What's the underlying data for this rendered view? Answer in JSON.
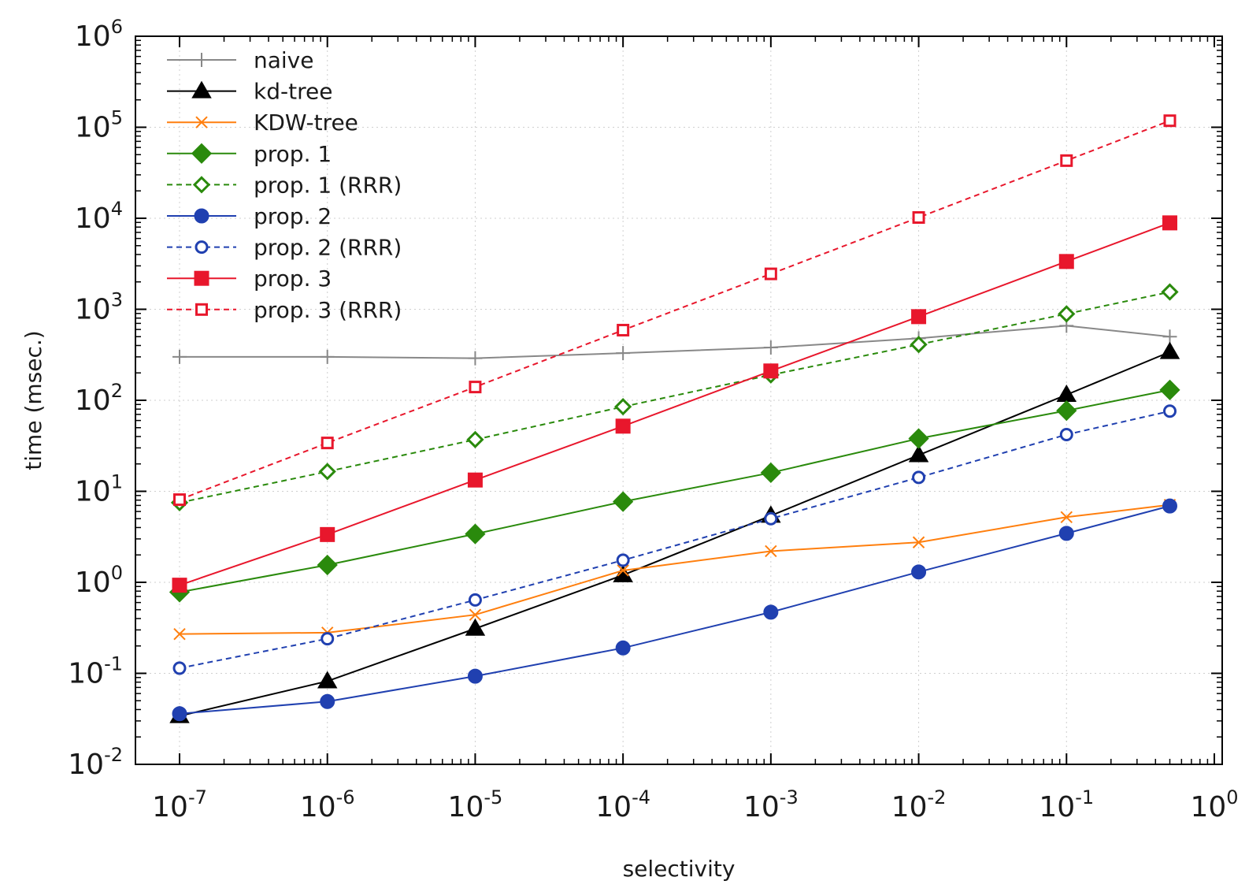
{
  "chart_data": {
    "type": "line",
    "title": "",
    "xlabel": "selectivity",
    "ylabel": "time (msec.)",
    "xscale": "log",
    "yscale": "log",
    "xlim": [
      1e-07,
      1
    ],
    "ylim": [
      0.01,
      1000000
    ],
    "grid": true,
    "legend_position": "top-left",
    "x_ticks": [
      {
        "base": "10",
        "exp": "-7"
      },
      {
        "base": "10",
        "exp": "-6"
      },
      {
        "base": "10",
        "exp": "-5"
      },
      {
        "base": "10",
        "exp": "-4"
      },
      {
        "base": "10",
        "exp": "-3"
      },
      {
        "base": "10",
        "exp": "-2"
      },
      {
        "base": "10",
        "exp": "-1"
      },
      {
        "base": "10",
        "exp": "0"
      }
    ],
    "y_ticks": [
      {
        "base": "10",
        "exp": "-2"
      },
      {
        "base": "10",
        "exp": "-1"
      },
      {
        "base": "10",
        "exp": "0"
      },
      {
        "base": "10",
        "exp": "1"
      },
      {
        "base": "10",
        "exp": "2"
      },
      {
        "base": "10",
        "exp": "3"
      },
      {
        "base": "10",
        "exp": "4"
      },
      {
        "base": "10",
        "exp": "5"
      },
      {
        "base": "10",
        "exp": "6"
      }
    ],
    "x": [
      1e-07,
      1e-06,
      1e-05,
      0.0001,
      0.001,
      0.01,
      0.1,
      0.5
    ],
    "series": [
      {
        "name": "naive",
        "color": "#888888",
        "dash": false,
        "marker": "plus",
        "filled": false,
        "values": [
          300,
          300,
          290,
          330,
          380,
          480,
          660,
          500
        ]
      },
      {
        "name": "kd-tree",
        "color": "#000000",
        "dash": false,
        "marker": "triangle",
        "filled": true,
        "values": [
          0.034,
          0.082,
          0.31,
          1.2,
          5.4,
          25,
          115,
          340
        ]
      },
      {
        "name": "KDW-tree",
        "color": "#ff7f0e",
        "dash": false,
        "marker": "x",
        "filled": false,
        "values": [
          0.27,
          0.28,
          0.44,
          1.35,
          2.2,
          2.75,
          5.2,
          7.1
        ]
      },
      {
        "name": "prop. 1",
        "color": "#2a8a0c",
        "dash": false,
        "marker": "diamond",
        "filled": true,
        "values": [
          0.78,
          1.55,
          3.4,
          7.7,
          16,
          38,
          77,
          130
        ]
      },
      {
        "name": "prop. 1 (RRR)",
        "color": "#2a8a0c",
        "dash": true,
        "marker": "diamond",
        "filled": false,
        "values": [
          7.5,
          16.5,
          37,
          85,
          190,
          410,
          890,
          1550
        ]
      },
      {
        "name": "prop. 2",
        "color": "#2040b0",
        "dash": false,
        "marker": "circle",
        "filled": true,
        "values": [
          0.036,
          0.049,
          0.093,
          0.19,
          0.47,
          1.3,
          3.45,
          6.9
        ]
      },
      {
        "name": "prop. 2 (RRR)",
        "color": "#2040b0",
        "dash": true,
        "marker": "circle",
        "filled": false,
        "values": [
          0.114,
          0.24,
          0.64,
          1.75,
          5.0,
          14.2,
          42,
          76
        ]
      },
      {
        "name": "prop. 3",
        "color": "#e8172c",
        "dash": false,
        "marker": "square",
        "filled": true,
        "values": [
          0.93,
          3.35,
          13.3,
          52,
          210,
          830,
          3350,
          8900
        ]
      },
      {
        "name": "prop. 3 (RRR)",
        "color": "#e8172c",
        "dash": true,
        "marker": "square",
        "filled": false,
        "values": [
          8.1,
          34,
          140,
          590,
          2450,
          10200,
          43000,
          118000
        ]
      }
    ]
  }
}
